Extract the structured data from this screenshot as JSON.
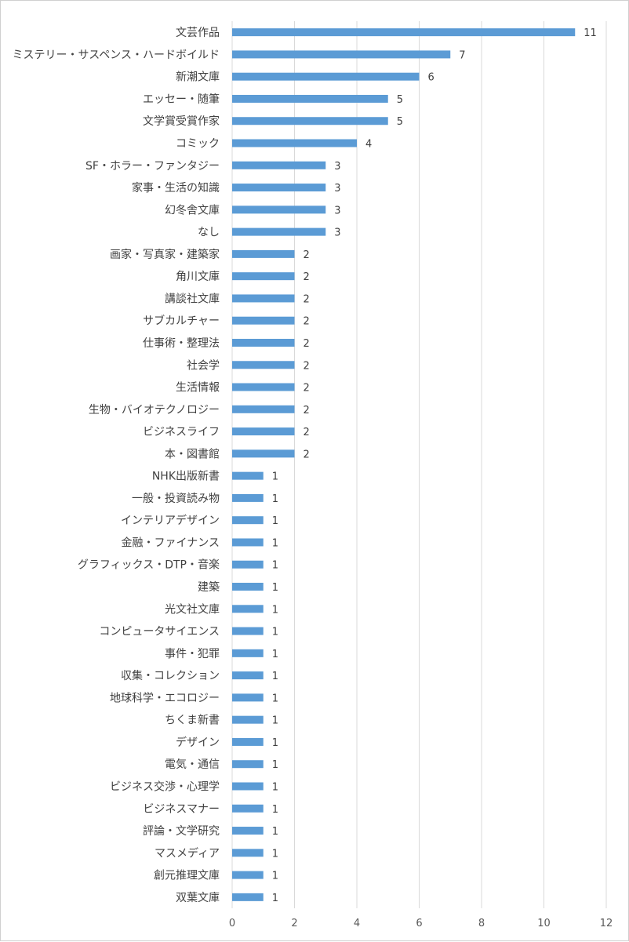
{
  "chart_data": {
    "type": "bar",
    "orientation": "horizontal",
    "title": "",
    "xlabel": "",
    "ylabel": "",
    "xlim": [
      0,
      12
    ],
    "x_ticks": [
      0,
      2,
      4,
      6,
      8,
      10,
      12
    ],
    "grid": "vertical",
    "legend": "none",
    "bar_color": "#5b9bd5",
    "data_labels": true,
    "categories": [
      "文芸作品",
      "ミステリー・サスペンス・ハードボイルド",
      "新潮文庫",
      "エッセー・随筆",
      "文学賞受賞作家",
      "コミック",
      "SF・ホラー・ファンタジー",
      "家事・生活の知識",
      "幻冬舎文庫",
      "なし",
      "画家・写真家・建築家",
      "角川文庫",
      "講談社文庫",
      "サブカルチャー",
      "仕事術・整理法",
      "社会学",
      "生活情報",
      "生物・バイオテクノロジー",
      "ビジネスライフ",
      "本・図書館",
      "NHK出版新書",
      "一般・投資読み物",
      "インテリアデザイン",
      "金融・ファイナンス",
      "グラフィックス・DTP・音楽",
      "建築",
      "光文社文庫",
      "コンピュータサイエンス",
      "事件・犯罪",
      "収集・コレクション",
      "地球科学・エコロジー",
      "ちくま新書",
      "デザイン",
      "電気・通信",
      "ビジネス交渉・心理学",
      "ビジネスマナー",
      "評論・文学研究",
      "マスメディア",
      "創元推理文庫",
      "双葉文庫"
    ],
    "values": [
      11,
      7,
      6,
      5,
      5,
      4,
      3,
      3,
      3,
      3,
      2,
      2,
      2,
      2,
      2,
      2,
      2,
      2,
      2,
      2,
      1,
      1,
      1,
      1,
      1,
      1,
      1,
      1,
      1,
      1,
      1,
      1,
      1,
      1,
      1,
      1,
      1,
      1,
      1,
      1
    ]
  }
}
